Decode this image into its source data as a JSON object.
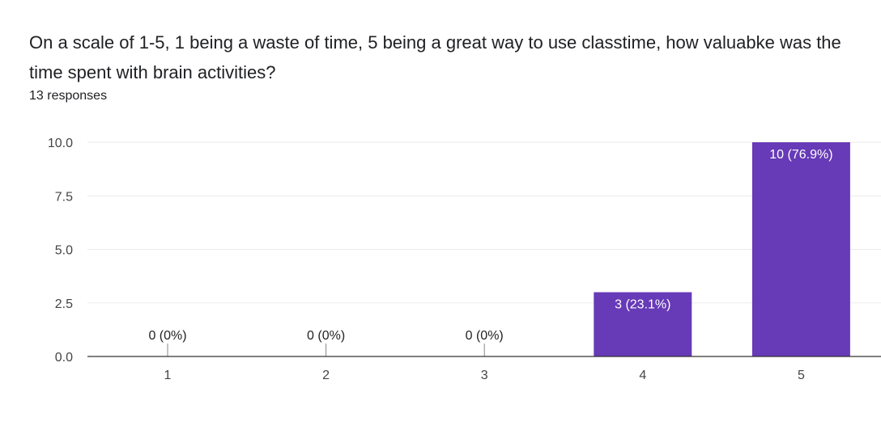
{
  "question": {
    "title": "On a scale of 1-5, 1 being a waste of time, 5 being a great way to use classtime, how valuabke was the time spent with brain activities?",
    "response_count": "13 responses"
  },
  "colors": {
    "bar": "#673ab7",
    "gridline": "#ebebeb",
    "axis": "#333333"
  },
  "chart_data": {
    "type": "bar",
    "categories": [
      "1",
      "2",
      "3",
      "4",
      "5"
    ],
    "values": [
      0,
      0,
      0,
      3,
      10
    ],
    "data_labels": [
      "0 (0%)",
      "0 (0%)",
      "0 (0%)",
      "3 (23.1%)",
      "10 (76.9%)"
    ],
    "y_ticks": [
      "0.0",
      "2.5",
      "5.0",
      "7.5",
      "10.0"
    ],
    "ylim": [
      0,
      10
    ],
    "grid": true,
    "legend": "none"
  }
}
